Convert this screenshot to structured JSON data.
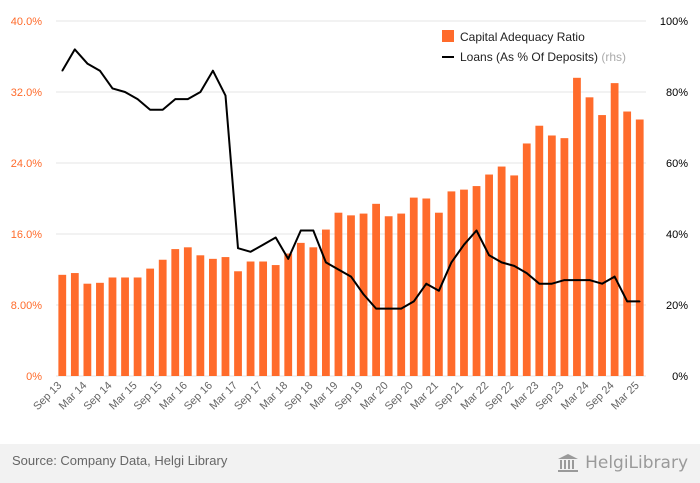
{
  "chart_data": {
    "type": "bar",
    "categories": [
      "Sep 13",
      "Dec 13",
      "Mar 14",
      "Jun 14",
      "Sep 14",
      "Dec 14",
      "Mar 15",
      "Jun 15",
      "Sep 15",
      "Dec 15",
      "Mar 16",
      "Jun 16",
      "Sep 16",
      "Dec 16",
      "Mar 17",
      "Jun 17",
      "Sep 17",
      "Dec 17",
      "Mar 18",
      "Jun 18",
      "Sep 18",
      "Dec 18",
      "Mar 19",
      "Jun 19",
      "Sep 19",
      "Dec 19",
      "Mar 20",
      "Jun 20",
      "Sep 20",
      "Dec 20",
      "Mar 21",
      "Jun 21",
      "Sep 21",
      "Dec 21",
      "Mar 22",
      "Jun 22",
      "Sep 22",
      "Dec 22",
      "Mar 23",
      "Jun 23",
      "Sep 23",
      "Dec 23",
      "Mar 24",
      "Jun 24",
      "Sep 24",
      "Dec 24",
      "Mar 25"
    ],
    "x_tick_labels": [
      "Sep 13",
      "Mar 14",
      "Sep 14",
      "Mar 15",
      "Sep 15",
      "Mar 16",
      "Sep 16",
      "Mar 17",
      "Sep 17",
      "Mar 18",
      "Sep 18",
      "Mar 19",
      "Sep 19",
      "Mar 20",
      "Sep 20",
      "Mar 21",
      "Sep 21",
      "Mar 22",
      "Sep 22",
      "Mar 23",
      "Sep 23",
      "Mar 24",
      "Sep 24",
      "Mar 25"
    ],
    "series": [
      {
        "name": "Capital Adequacy Ratio",
        "kind": "bar",
        "axis": "left",
        "color": "#ff6b2b",
        "values": [
          11.4,
          11.6,
          10.4,
          10.5,
          11.1,
          11.1,
          11.1,
          12.1,
          13.1,
          14.3,
          14.5,
          13.6,
          13.2,
          13.4,
          11.8,
          12.9,
          12.9,
          12.5,
          13.8,
          15.0,
          14.5,
          16.5,
          18.4,
          18.1,
          18.3,
          19.4,
          18.0,
          18.3,
          20.1,
          20.0,
          18.4,
          20.8,
          21.0,
          21.4,
          22.7,
          23.6,
          22.6,
          26.2,
          28.2,
          27.1,
          26.8,
          33.6,
          31.4,
          29.4,
          33.0,
          29.8,
          28.9
        ]
      },
      {
        "name": "Loans (As % Of Deposits)",
        "name_suffix": "(rhs)",
        "kind": "line",
        "axis": "right",
        "color": "#000000",
        "values": [
          86,
          92,
          88,
          86,
          81,
          80,
          78,
          75,
          75,
          78,
          78,
          80,
          86,
          79,
          36,
          35,
          37,
          39,
          33,
          41,
          41,
          32,
          30,
          28,
          23,
          19,
          19,
          19,
          21,
          26,
          24,
          32,
          37,
          41,
          34,
          32,
          31,
          29,
          26,
          26,
          27,
          27,
          27,
          26,
          28,
          21,
          21
        ]
      }
    ],
    "y_left": {
      "ticks": [
        "0%",
        "8.00%",
        "16.0%",
        "24.0%",
        "32.0%",
        "40.0%"
      ],
      "values": [
        0,
        8,
        16,
        24,
        32,
        40
      ],
      "range": [
        0,
        40
      ],
      "color": "#ff6b2b"
    },
    "y_right": {
      "ticks": [
        "0%",
        "20%",
        "40%",
        "60%",
        "80%",
        "100%"
      ],
      "values": [
        0,
        20,
        40,
        60,
        80,
        100
      ],
      "range": [
        0,
        100
      ],
      "color": "#000000"
    },
    "grid": true,
    "legend_position": "top-right"
  },
  "footer": {
    "source": "Source: Company Data, Helgi Library",
    "brand": "HelgiLibrary"
  },
  "colors": {
    "bar": "#ff6b2b",
    "line": "#000000",
    "grid": "#e6e6e6",
    "footer_bg": "#f2f2f2"
  }
}
